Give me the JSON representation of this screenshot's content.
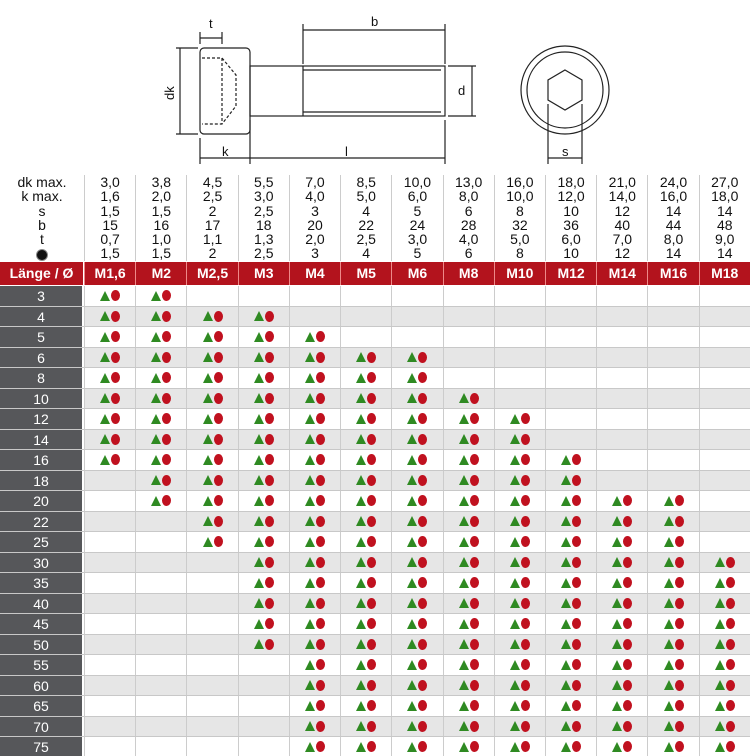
{
  "drawing": {
    "labels": {
      "t": "t",
      "b": "b",
      "dk": "dk",
      "d": "d",
      "k": "k",
      "l": "l",
      "s": "s"
    }
  },
  "dimensions": {
    "sizes": [
      "M1,6",
      "M2",
      "M2,5",
      "M3",
      "M4",
      "M5",
      "M6",
      "M8",
      "M10",
      "M12",
      "M14",
      "M16",
      "M18"
    ],
    "rows": [
      {
        "label": "dk max.",
        "values": [
          "3,0",
          "3,8",
          "4,5",
          "5,5",
          "7,0",
          "8,5",
          "10,0",
          "13,0",
          "16,0",
          "18,0",
          "21,0",
          "24,0",
          "27,0"
        ]
      },
      {
        "label": "k max.",
        "values": [
          "1,6",
          "2,0",
          "2,5",
          "3,0",
          "4,0",
          "5,0",
          "6,0",
          "8,0",
          "10,0",
          "12,0",
          "14,0",
          "16,0",
          "18,0"
        ]
      },
      {
        "label": "s",
        "values": [
          "1,5",
          "1,5",
          "2",
          "2,5",
          "3",
          "4",
          "5",
          "6",
          "8",
          "10",
          "12",
          "14",
          "14"
        ]
      },
      {
        "label": "b",
        "values": [
          "15",
          "16",
          "17",
          "18",
          "20",
          "22",
          "24",
          "28",
          "32",
          "36",
          "40",
          "44",
          "48"
        ]
      },
      {
        "label": "t",
        "values": [
          "0,7",
          "1,0",
          "1,1",
          "1,3",
          "2,0",
          "2,5",
          "3,0",
          "4,0",
          "5,0",
          "6,0",
          "7,0",
          "8,0",
          "9,0"
        ]
      },
      {
        "label": "",
        "icon": "drill-bit-icon",
        "values": [
          "1,5",
          "1,5",
          "2",
          "2,5",
          "3",
          "4",
          "5",
          "6",
          "8",
          "10",
          "12",
          "14",
          "14"
        ]
      }
    ]
  },
  "table": {
    "header_label": "Länge / Ø",
    "colors": {
      "header": "#b3131d",
      "triangle": "#2f8a22",
      "circle": "#c0111f",
      "label_bg": "#56575a"
    },
    "icons": [
      "triangle-green-icon",
      "circle-red-icon"
    ],
    "rows": [
      {
        "length": "3",
        "available_from": "M1,6",
        "available_to": "M2"
      },
      {
        "length": "4",
        "available_from": "M1,6",
        "available_to": "M3"
      },
      {
        "length": "5",
        "available_from": "M1,6",
        "available_to": "M4"
      },
      {
        "length": "6",
        "available_from": "M1,6",
        "available_to": "M6"
      },
      {
        "length": "8",
        "available_from": "M1,6",
        "available_to": "M6"
      },
      {
        "length": "10",
        "available_from": "M1,6",
        "available_to": "M8"
      },
      {
        "length": "12",
        "available_from": "M1,6",
        "available_to": "M10"
      },
      {
        "length": "14",
        "available_from": "M1,6",
        "available_to": "M10"
      },
      {
        "length": "16",
        "available_from": "M1,6",
        "available_to": "M12"
      },
      {
        "length": "18",
        "available_from": "M2",
        "available_to": "M12"
      },
      {
        "length": "20",
        "available_from": "M2",
        "available_to": "M16"
      },
      {
        "length": "22",
        "available_from": "M2,5",
        "available_to": "M16"
      },
      {
        "length": "25",
        "available_from": "M2,5",
        "available_to": "M16"
      },
      {
        "length": "30",
        "available_from": "M3",
        "available_to": "M18"
      },
      {
        "length": "35",
        "available_from": "M3",
        "available_to": "M18"
      },
      {
        "length": "40",
        "available_from": "M3",
        "available_to": "M18"
      },
      {
        "length": "45",
        "available_from": "M3",
        "available_to": "M18"
      },
      {
        "length": "50",
        "available_from": "M3",
        "available_to": "M18"
      },
      {
        "length": "55",
        "available_from": "M4",
        "available_to": "M18"
      },
      {
        "length": "60",
        "available_from": "M4",
        "available_to": "M18"
      },
      {
        "length": "65",
        "available_from": "M4",
        "available_to": "M18"
      },
      {
        "length": "70",
        "available_from": "M4",
        "available_to": "M18"
      },
      {
        "length": "75",
        "available_from": "M4",
        "available_to": "M18"
      }
    ]
  }
}
